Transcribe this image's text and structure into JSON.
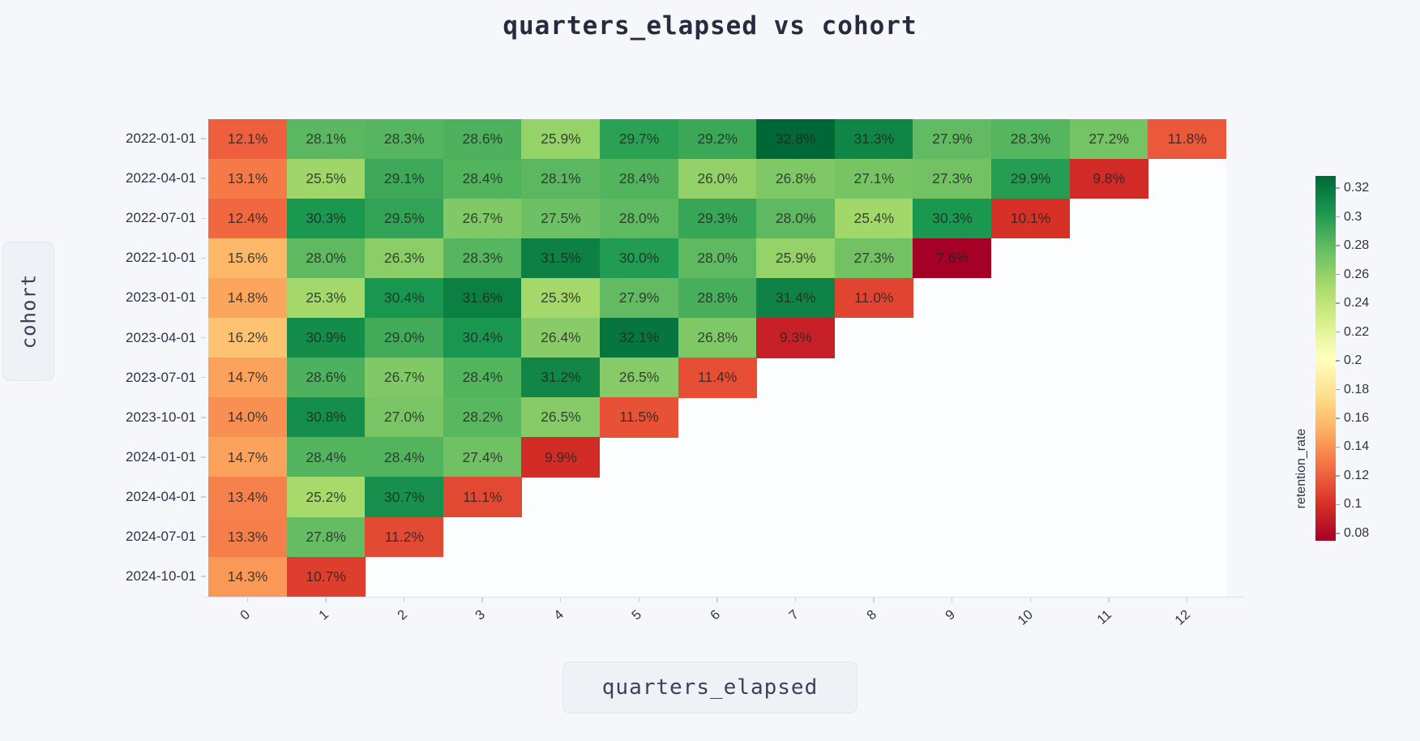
{
  "page": {
    "background": "#f6f7fa",
    "plot_background": "#fcfdfe"
  },
  "title": {
    "text": "quarters_elapsed vs cohort"
  },
  "axes": {
    "x_label": "quarters_elapsed",
    "y_label": "cohort",
    "x_tick_labels": [
      "0",
      "1",
      "2",
      "3",
      "4",
      "5",
      "6",
      "7",
      "8",
      "9",
      "10",
      "11",
      "12"
    ]
  },
  "colorbar": {
    "title": "retention_rate",
    "tick_labels": [
      "0.32",
      "0.3",
      "0.28",
      "0.26",
      "0.24",
      "0.22",
      "0.2",
      "0.18",
      "0.16",
      "0.14",
      "0.12",
      "0.1",
      "0.08"
    ],
    "tick_values": [
      0.32,
      0.3,
      0.28,
      0.26,
      0.24,
      0.22,
      0.2,
      0.18,
      0.16,
      0.14,
      0.12,
      0.1,
      0.08
    ]
  },
  "chart_data": {
    "type": "heatmap",
    "title": "quarters_elapsed vs cohort",
    "xlabel": "quarters_elapsed",
    "ylabel": "cohort",
    "legend_title": "retention_rate",
    "x": [
      0,
      1,
      2,
      3,
      4,
      5,
      6,
      7,
      8,
      9,
      10,
      11,
      12
    ],
    "value_unit": "%",
    "rows": [
      {
        "cohort": "2022-01-01",
        "values": [
          12.1,
          28.1,
          28.3,
          28.6,
          25.9,
          29.7,
          29.2,
          32.8,
          31.3,
          27.9,
          28.3,
          27.2,
          11.8
        ]
      },
      {
        "cohort": "2022-04-01",
        "values": [
          13.1,
          25.5,
          29.1,
          28.4,
          28.1,
          28.4,
          26.0,
          26.8,
          27.1,
          27.3,
          29.9,
          9.8
        ]
      },
      {
        "cohort": "2022-07-01",
        "values": [
          12.4,
          30.3,
          29.5,
          26.7,
          27.5,
          28.0,
          29.3,
          28.0,
          25.4,
          30.3,
          10.1
        ]
      },
      {
        "cohort": "2022-10-01",
        "values": [
          15.6,
          28.0,
          26.3,
          28.3,
          31.5,
          30.0,
          28.0,
          25.9,
          27.3,
          7.6
        ]
      },
      {
        "cohort": "2023-01-01",
        "values": [
          14.8,
          25.3,
          30.4,
          31.6,
          25.3,
          27.9,
          28.8,
          31.4,
          11.0
        ]
      },
      {
        "cohort": "2023-04-01",
        "values": [
          16.2,
          30.9,
          29.0,
          30.4,
          26.4,
          32.1,
          26.8,
          9.3
        ]
      },
      {
        "cohort": "2023-07-01",
        "values": [
          14.7,
          28.6,
          26.7,
          28.4,
          31.2,
          26.5,
          11.4
        ]
      },
      {
        "cohort": "2023-10-01",
        "values": [
          14.0,
          30.8,
          27.0,
          28.2,
          26.5,
          11.5
        ]
      },
      {
        "cohort": "2024-01-01",
        "values": [
          14.7,
          28.4,
          28.4,
          27.4,
          9.9
        ]
      },
      {
        "cohort": "2024-04-01",
        "values": [
          13.4,
          25.2,
          30.7,
          11.1
        ]
      },
      {
        "cohort": "2024-07-01",
        "values": [
          13.3,
          27.8,
          11.2
        ]
      },
      {
        "cohort": "2024-10-01",
        "values": [
          14.3,
          10.7
        ]
      }
    ],
    "color_domain": [
      0.076,
      0.328
    ],
    "colorbar_range": [
      0.0749,
      0.3285
    ],
    "colorscale_name": "RdYlGn",
    "colorscale": [
      [
        0.0,
        "#a50026"
      ],
      [
        0.1,
        "#d73027"
      ],
      [
        0.2,
        "#f46d43"
      ],
      [
        0.3,
        "#fdae61"
      ],
      [
        0.4,
        "#fee08b"
      ],
      [
        0.5,
        "#ffffbf"
      ],
      [
        0.6,
        "#d9ef8b"
      ],
      [
        0.7,
        "#a6d96a"
      ],
      [
        0.8,
        "#66bd63"
      ],
      [
        0.9,
        "#1a9850"
      ],
      [
        1.0,
        "#006837"
      ]
    ]
  }
}
